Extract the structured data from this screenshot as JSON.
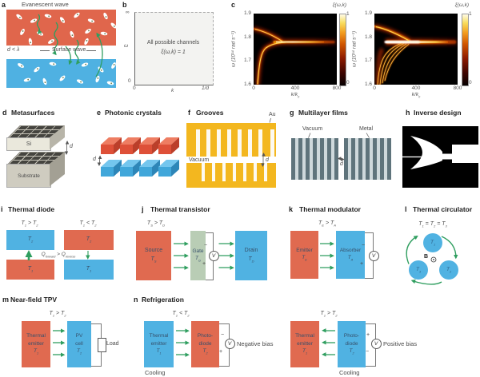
{
  "colors": {
    "hot": "#e06a50",
    "cold": "#50b2e2",
    "arrow_green": "#2f9e5f",
    "gate_green": "#b9cdb5",
    "gold": "#f3b71f",
    "metal_dark": "#5f747c",
    "metal_light": "#cfd9dc",
    "heatmap_bg": "#000000"
  },
  "panel_a": {
    "letter": "a",
    "evanescent": "Evanescent wave",
    "surface": "Surface wave",
    "gap": "d < λ"
  },
  "panel_b": {
    "letter": "b",
    "line1": "All possible channels",
    "line2": "ξ(ω,k) = 1",
    "inf": "∞",
    "omega": "ω",
    "zero_y": "0",
    "zero_x": "0",
    "k": "k",
    "inv_d": "1/d"
  },
  "panel_c": {
    "letter": "c",
    "ylabel": "ω (10¹⁴ rad s⁻¹)",
    "yticks": [
      "1.9",
      "1.8",
      "1.7",
      "1.6"
    ],
    "xticks": [
      "0",
      "400",
      "800"
    ],
    "xlabel": "k/k_0_",
    "cb_label": "ξ(ω,k)",
    "cb_max": "1",
    "cb_min": "0"
  },
  "panel_d": {
    "letter": "d",
    "title": "Metasurfaces",
    "si": "Si",
    "substrate": "Substrate",
    "d": "d"
  },
  "panel_e": {
    "letter": "e",
    "title": "Photonic crystals",
    "d": "d"
  },
  "panel_f": {
    "letter": "f",
    "title": "Grooves",
    "au": "Au",
    "vacuum": "Vacuum",
    "d": "d"
  },
  "panel_g": {
    "letter": "g",
    "title": "Multilayer films",
    "vacuum": "Vacuum",
    "metal": "Metal",
    "d": "d"
  },
  "panel_h": {
    "letter": "h",
    "title": "Inverse design"
  },
  "panel_i": {
    "letter": "i",
    "title": "Thermal diode",
    "cond_left": "T_1_ > T_2_",
    "cond_right": "T_1_ < T_2_",
    "t1": "T_1_",
    "t2": "T_2_",
    "flux": "Q_forward_ > Q_reverse_"
  },
  "panel_j": {
    "letter": "j",
    "title": "Thermal transistor",
    "cond": "T_S_ > T_D_",
    "source": "Source",
    "source_t": "T_S_",
    "gate": "Gate",
    "gate_t": "T_G_",
    "drain": "Drain",
    "drain_t": "T_D_",
    "v": "V",
    "minus": "−",
    "plus": "+"
  },
  "panel_k": {
    "letter": "k",
    "title": "Thermal modulator",
    "cond": "T_E_ > T_A_",
    "emitter": "Emitter",
    "emitter_t": "T_E_",
    "absorber": "Absorber",
    "absorber_t": "T_A_",
    "v": "V",
    "minus": "−",
    "plus": "+"
  },
  "panel_l": {
    "letter": "l",
    "title": "Thermal circulator",
    "cond": "T_1_ = T_2_ = T_3_",
    "t1": "T_1_",
    "t2": "T_2_",
    "t3": "T_3_",
    "b": "B"
  },
  "panel_m": {
    "letter": "m",
    "title": "Near-field TPV",
    "cond": "T_1_ > T_2_",
    "emitter1": "Thermal",
    "emitter2": "emitter",
    "emitter_t": "T_1_",
    "pv1": "PV",
    "pv2": "cell",
    "pv_t": "T_2_",
    "load": "Load"
  },
  "panel_n": {
    "letter": "n",
    "title": "Refrigeration",
    "left": {
      "cond": "T_1_ < T_2_",
      "e1": "Thermal",
      "e2": "emitter",
      "e_t": "T_1_",
      "d1": "Photo-",
      "d2": "diode",
      "d_t": "T_2_",
      "cooling": "Cooling",
      "bias": "Negative bias",
      "v": "V",
      "top_sign": "−",
      "bottom_sign": "+"
    },
    "right": {
      "cond": "T_1_ > T_2_",
      "e1": "Thermal",
      "e2": "emitter",
      "e_t": "T_1_",
      "d1": "Photo-",
      "d2": "diode",
      "d_t": "T_2_",
      "cooling": "Cooling",
      "bias": "Positive bias",
      "v": "V",
      "top_sign": "+",
      "bottom_sign": "−"
    }
  },
  "chart_data": [
    {
      "type": "schematic-plot",
      "panel": "b",
      "region_label": "All possible channels ξ(ω,k) = 1",
      "xlabel": "k",
      "ylabel": "ω",
      "x_range": [
        "0",
        "1/d"
      ],
      "y_range": [
        "0",
        "∞"
      ],
      "style": "uniform shaded square region bounded by dashed lines at ω→∞ and k = 1/d"
    },
    {
      "type": "heatmap",
      "panel": "c-left",
      "xlabel": "k/k0",
      "ylabel": "ω (10^14 rad s^-1)",
      "xlim": [
        0,
        800
      ],
      "ylim": [
        1.6,
        1.9
      ],
      "colorbar_label": "ξ(ω,k)",
      "colorbar_range": [
        0,
        1
      ],
      "features": [
        {
          "name": "upper surface-mode branch",
          "points": [
            [
              0,
              1.84
            ],
            [
              120,
              1.81
            ],
            [
              270,
              1.785
            ]
          ]
        },
        {
          "name": "lower surface-mode branch",
          "points": [
            [
              20,
              1.6
            ],
            [
              60,
              1.7
            ],
            [
              130,
              1.765
            ],
            [
              300,
              1.78
            ]
          ]
        },
        {
          "name": "flat resonance band",
          "points": [
            [
              250,
              1.782
            ],
            [
              800,
              1.782
            ]
          ],
          "note": "bright ξ≈1 band at ω≈1.78, dimming toward k/k0=800"
        }
      ]
    },
    {
      "type": "heatmap",
      "panel": "c-right",
      "xlabel": "k/k0",
      "ylabel": "ω (10^14 rad s^-1)",
      "xlim": [
        0,
        800
      ],
      "ylim": [
        1.6,
        1.9
      ],
      "colorbar_label": "ξ(ω,k)",
      "colorbar_range": [
        0,
        1
      ],
      "features": [
        {
          "name": "upper branch",
          "points": [
            [
              0,
              1.85
            ],
            [
              150,
              1.8
            ],
            [
              330,
              1.785
            ]
          ]
        },
        {
          "name": "fan of multiple closely spaced lower branches",
          "points": [
            [
              20,
              1.6
            ],
            [
              80,
              1.7
            ],
            [
              180,
              1.77
            ],
            [
              330,
              1.782
            ]
          ],
          "note": "4-5 sub-branches converge"
        },
        {
          "name": "broad bright resonance band",
          "points": [
            [
              100,
              1.782
            ],
            [
              750,
              1.782
            ]
          ],
          "note": "wider and brighter (ξ≈1) than left panel"
        }
      ]
    }
  ]
}
